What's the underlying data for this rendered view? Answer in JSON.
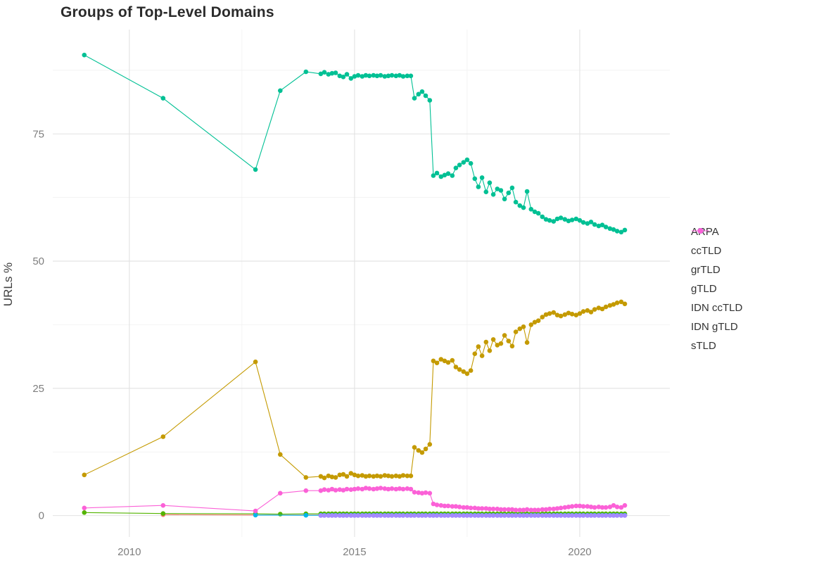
{
  "chart_data": {
    "type": "scatter",
    "title": "Groups of Top-Level Domains",
    "xlabel": "",
    "ylabel": "URLs %",
    "x_ticks": [
      2010,
      2015,
      2020
    ],
    "x_minor_ticks": [
      2012.5,
      2017.5
    ],
    "y_ticks": [
      0,
      25,
      50,
      75
    ],
    "y_minor_ticks": [
      12.5,
      37.5,
      62.5,
      87.5
    ],
    "xlim": [
      2008.3,
      2022.0
    ],
    "ylim": [
      -4.2,
      95.5
    ],
    "grid": true,
    "legend_position": "right",
    "dense_x": [
      2014.25,
      2014.33,
      2014.42,
      2014.5,
      2014.58,
      2014.67,
      2014.75,
      2014.83,
      2014.92,
      2015.0,
      2015.08,
      2015.17,
      2015.25,
      2015.33,
      2015.42,
      2015.5,
      2015.58,
      2015.67,
      2015.75,
      2015.83,
      2015.92,
      2016.0,
      2016.08,
      2016.17,
      2016.25,
      2016.33,
      2016.42,
      2016.5,
      2016.58,
      2016.67,
      2016.75,
      2016.83,
      2016.92,
      2017.0,
      2017.08,
      2017.17,
      2017.25,
      2017.33,
      2017.42,
      2017.5,
      2017.58,
      2017.67,
      2017.75,
      2017.83,
      2017.92,
      2018.0,
      2018.08,
      2018.17,
      2018.25,
      2018.33,
      2018.42,
      2018.5,
      2018.58,
      2018.67,
      2018.75,
      2018.83,
      2018.92,
      2019.0,
      2019.08,
      2019.17,
      2019.25,
      2019.33,
      2019.42,
      2019.5,
      2019.58,
      2019.67,
      2019.75,
      2019.83,
      2019.92,
      2020.0,
      2020.08,
      2020.17,
      2020.25,
      2020.33,
      2020.42,
      2020.5,
      2020.58,
      2020.67,
      2020.75,
      2020.83,
      2020.92,
      2021.0
    ],
    "series": [
      {
        "name": "ARPA",
        "color": "#F8766D",
        "early": [
          [
            2010.75,
            0.18
          ],
          [
            2012.8,
            0.12
          ],
          [
            2013.92,
            0.12
          ]
        ],
        "dense_fill": 0.12
      },
      {
        "name": "ccTLD",
        "color": "#C49A00",
        "early": [
          [
            2009.0,
            8.0
          ],
          [
            2010.75,
            15.5
          ],
          [
            2012.8,
            30.2
          ],
          [
            2013.35,
            12.0
          ],
          [
            2013.92,
            7.5
          ]
        ],
        "dense": [
          7.7,
          7.4,
          7.8,
          7.6,
          7.5,
          8.0,
          8.1,
          7.7,
          8.3,
          8.0,
          7.8,
          7.9,
          7.7,
          7.8,
          7.7,
          7.8,
          7.7,
          7.9,
          7.8,
          7.7,
          7.8,
          7.7,
          7.9,
          7.8,
          7.8,
          13.4,
          12.8,
          12.4,
          13.1,
          14.0,
          30.4,
          30.0,
          30.7,
          30.4,
          30.1,
          30.5,
          29.2,
          28.7,
          28.3,
          27.9,
          28.5,
          31.8,
          33.2,
          31.4,
          34.1,
          32.4,
          34.6,
          33.5,
          33.8,
          35.4,
          34.3,
          33.3,
          36.1,
          36.7,
          37.1,
          34.0,
          37.5,
          38.0,
          38.3,
          39.0,
          39.5,
          39.7,
          39.9,
          39.4,
          39.2,
          39.5,
          39.8,
          39.6,
          39.4,
          39.7,
          40.1,
          40.3,
          40.0,
          40.5,
          40.8,
          40.6,
          41.0,
          41.3,
          41.5,
          41.8,
          42.0,
          41.6
        ]
      },
      {
        "name": "grTLD",
        "color": "#53B400",
        "early": [
          [
            2009.0,
            0.6
          ],
          [
            2010.75,
            0.4
          ],
          [
            2012.8,
            0.35
          ],
          [
            2013.35,
            0.3
          ],
          [
            2013.92,
            0.35
          ]
        ],
        "dense_fill": 0.35
      },
      {
        "name": "gTLD",
        "color": "#00C094",
        "early": [
          [
            2009.0,
            90.5
          ],
          [
            2010.75,
            82.0
          ],
          [
            2012.8,
            68.0
          ],
          [
            2013.35,
            83.5
          ],
          [
            2013.92,
            87.2
          ]
        ],
        "dense": [
          86.8,
          87.1,
          86.7,
          86.9,
          87.0,
          86.4,
          86.2,
          86.7,
          85.9,
          86.3,
          86.5,
          86.3,
          86.5,
          86.4,
          86.5,
          86.4,
          86.5,
          86.3,
          86.4,
          86.5,
          86.4,
          86.5,
          86.3,
          86.4,
          86.4,
          82.0,
          82.8,
          83.3,
          82.5,
          81.6,
          66.8,
          67.3,
          66.6,
          66.9,
          67.2,
          66.8,
          68.3,
          68.9,
          69.4,
          69.9,
          69.2,
          66.2,
          64.6,
          66.4,
          63.6,
          65.4,
          63.1,
          64.2,
          63.9,
          62.2,
          63.4,
          64.4,
          61.6,
          60.9,
          60.5,
          63.7,
          60.2,
          59.7,
          59.4,
          58.7,
          58.2,
          58.0,
          57.8,
          58.3,
          58.5,
          58.2,
          57.9,
          58.1,
          58.3,
          58.0,
          57.6,
          57.4,
          57.7,
          57.2,
          56.9,
          57.1,
          56.7,
          56.4,
          56.2,
          55.9,
          55.7,
          56.1
        ]
      },
      {
        "name": "IDN ccTLD",
        "color": "#00B6EB",
        "early": [
          [
            2012.8,
            0.1
          ],
          [
            2013.92,
            0.06
          ]
        ],
        "dense_fill": 0.06
      },
      {
        "name": "IDN gTLD",
        "color": "#A58AFF",
        "early": [],
        "dense_fill": 0.02
      },
      {
        "name": "sTLD",
        "color": "#FB61D7",
        "early": [
          [
            2009.0,
            1.5
          ],
          [
            2010.75,
            2.0
          ],
          [
            2012.8,
            0.9
          ],
          [
            2013.35,
            4.4
          ],
          [
            2013.92,
            4.9
          ]
        ],
        "dense": [
          4.9,
          5.1,
          5.0,
          5.2,
          5.0,
          5.1,
          5.0,
          5.2,
          5.1,
          5.2,
          5.3,
          5.2,
          5.4,
          5.3,
          5.2,
          5.3,
          5.4,
          5.3,
          5.2,
          5.3,
          5.2,
          5.3,
          5.2,
          5.3,
          5.2,
          4.6,
          4.5,
          4.4,
          4.5,
          4.4,
          2.3,
          2.1,
          2.0,
          1.9,
          1.9,
          1.8,
          1.8,
          1.7,
          1.6,
          1.6,
          1.5,
          1.5,
          1.4,
          1.4,
          1.4,
          1.3,
          1.3,
          1.3,
          1.2,
          1.2,
          1.2,
          1.2,
          1.1,
          1.1,
          1.1,
          1.2,
          1.1,
          1.1,
          1.1,
          1.2,
          1.2,
          1.3,
          1.3,
          1.4,
          1.5,
          1.6,
          1.7,
          1.8,
          1.9,
          1.9,
          1.8,
          1.8,
          1.7,
          1.6,
          1.7,
          1.6,
          1.6,
          1.7,
          2.0,
          1.7,
          1.6,
          2.0
        ]
      }
    ],
    "style": {
      "grid_major_color": "#E2E2E2",
      "grid_minor_color": "#EFEFEF",
      "tick_label_color": "#7e7e7e",
      "background": "#FFFFFF"
    }
  }
}
